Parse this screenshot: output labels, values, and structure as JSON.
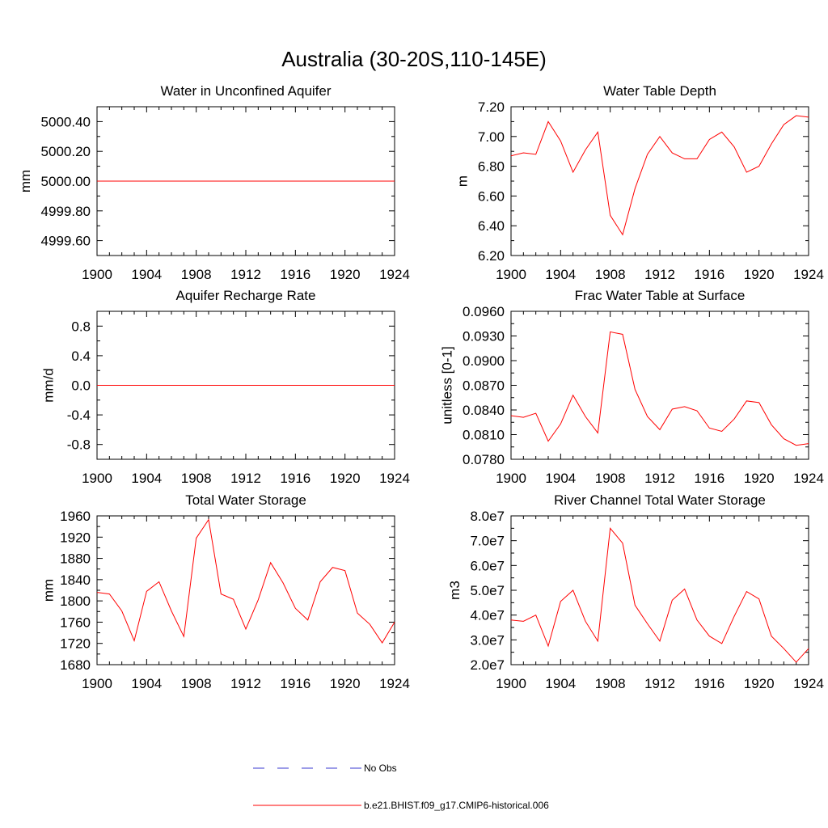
{
  "page_title": "Australia (30-20S,110-145E)",
  "legend": {
    "obs_label": "No Obs",
    "obs_color": "#3a3ad0",
    "model_label": "b.e21.BHIST.f09_g17.CMIP6-historical.006",
    "model_color": "#ff0000"
  },
  "chart_data": [
    {
      "type": "line",
      "title": "Water in Unconfined Aquifer",
      "ylabel": "mm",
      "xlim": [
        1900,
        1924
      ],
      "ylim": [
        4999.5,
        5000.5
      ],
      "xticks": [
        1900,
        1904,
        1908,
        1912,
        1916,
        1920,
        1924
      ],
      "yticks": [
        4999.6,
        4999.8,
        5000.0,
        5000.2,
        5000.4
      ],
      "ytick_labels": [
        "4999.60",
        "4999.80",
        "5000.00",
        "5000.20",
        "5000.40"
      ],
      "x": [
        1900,
        1901,
        1902,
        1903,
        1904,
        1905,
        1906,
        1907,
        1908,
        1909,
        1910,
        1911,
        1912,
        1913,
        1914,
        1915,
        1916,
        1917,
        1918,
        1919,
        1920,
        1921,
        1922,
        1923,
        1924
      ],
      "series": [
        {
          "values": [
            5000,
            5000,
            5000,
            5000,
            5000,
            5000,
            5000,
            5000,
            5000,
            5000,
            5000,
            5000,
            5000,
            5000,
            5000,
            5000,
            5000,
            5000,
            5000,
            5000,
            5000,
            5000,
            5000,
            5000,
            5000
          ]
        }
      ]
    },
    {
      "type": "line",
      "title": "Water Table Depth",
      "ylabel": "m",
      "xlim": [
        1900,
        1924
      ],
      "ylim": [
        6.2,
        7.2
      ],
      "xticks": [
        1900,
        1904,
        1908,
        1912,
        1916,
        1920,
        1924
      ],
      "yticks": [
        6.2,
        6.4,
        6.6,
        6.8,
        7.0,
        7.2
      ],
      "ytick_labels": [
        "6.20",
        "6.40",
        "6.60",
        "6.80",
        "7.00",
        "7.20"
      ],
      "x": [
        1900,
        1901,
        1902,
        1903,
        1904,
        1905,
        1906,
        1907,
        1908,
        1909,
        1910,
        1911,
        1912,
        1913,
        1914,
        1915,
        1916,
        1917,
        1918,
        1919,
        1920,
        1921,
        1922,
        1923,
        1924
      ],
      "series": [
        {
          "values": [
            6.87,
            6.89,
            6.88,
            7.1,
            6.97,
            6.76,
            6.91,
            7.03,
            6.47,
            6.34,
            6.65,
            6.88,
            7.0,
            6.89,
            6.85,
            6.85,
            6.98,
            7.03,
            6.93,
            6.76,
            6.8,
            6.95,
            7.08,
            7.14,
            7.13
          ]
        }
      ]
    },
    {
      "type": "line",
      "title": "Aquifer Recharge Rate",
      "ylabel": "mm/d",
      "xlim": [
        1900,
        1924
      ],
      "ylim": [
        -1.0,
        1.0
      ],
      "xticks": [
        1900,
        1904,
        1908,
        1912,
        1916,
        1920,
        1924
      ],
      "yticks": [
        -0.8,
        -0.4,
        0.0,
        0.4,
        0.8
      ],
      "ytick_labels": [
        "-0.8",
        "-0.4",
        "0.0",
        "0.4",
        "0.8"
      ],
      "x": [
        1900,
        1901,
        1902,
        1903,
        1904,
        1905,
        1906,
        1907,
        1908,
        1909,
        1910,
        1911,
        1912,
        1913,
        1914,
        1915,
        1916,
        1917,
        1918,
        1919,
        1920,
        1921,
        1922,
        1923,
        1924
      ],
      "series": [
        {
          "values": [
            0,
            0,
            0,
            0,
            0,
            0,
            0,
            0,
            0,
            0,
            0,
            0,
            0,
            0,
            0,
            0,
            0,
            0,
            0,
            0,
            0,
            0,
            0,
            0,
            0
          ]
        }
      ]
    },
    {
      "type": "line",
      "title": "Frac Water Table at Surface",
      "ylabel": "unitless [0-1]",
      "xlim": [
        1900,
        1924
      ],
      "ylim": [
        0.078,
        0.096
      ],
      "xticks": [
        1900,
        1904,
        1908,
        1912,
        1916,
        1920,
        1924
      ],
      "yticks": [
        0.078,
        0.081,
        0.084,
        0.087,
        0.09,
        0.093,
        0.096
      ],
      "ytick_labels": [
        "0.0780",
        "0.0810",
        "0.0840",
        "0.0870",
        "0.0900",
        "0.0930",
        "0.0960"
      ],
      "x": [
        1900,
        1901,
        1902,
        1903,
        1904,
        1905,
        1906,
        1907,
        1908,
        1909,
        1910,
        1911,
        1912,
        1913,
        1914,
        1915,
        1916,
        1917,
        1918,
        1919,
        1920,
        1921,
        1922,
        1923,
        1924
      ],
      "series": [
        {
          "values": [
            0.0833,
            0.0831,
            0.0836,
            0.0802,
            0.0823,
            0.0858,
            0.0832,
            0.0812,
            0.0935,
            0.0932,
            0.0865,
            0.0832,
            0.0816,
            0.0841,
            0.0844,
            0.0839,
            0.0818,
            0.0814,
            0.0829,
            0.0851,
            0.0849,
            0.0822,
            0.0805,
            0.0797,
            0.0799
          ]
        }
      ]
    },
    {
      "type": "line",
      "title": "Total Water Storage",
      "ylabel": "mm",
      "xlim": [
        1900,
        1924
      ],
      "ylim": [
        1680,
        1960
      ],
      "xticks": [
        1900,
        1904,
        1908,
        1912,
        1916,
        1920,
        1924
      ],
      "yticks": [
        1680,
        1720,
        1760,
        1800,
        1840,
        1880,
        1920,
        1960
      ],
      "ytick_labels": [
        "1680",
        "1720",
        "1760",
        "1800",
        "1840",
        "1880",
        "1920",
        "1960"
      ],
      "x": [
        1900,
        1901,
        1902,
        1903,
        1904,
        1905,
        1906,
        1907,
        1908,
        1909,
        1910,
        1911,
        1912,
        1913,
        1914,
        1915,
        1916,
        1917,
        1918,
        1919,
        1920,
        1921,
        1922,
        1923,
        1924
      ],
      "series": [
        {
          "values": [
            1816,
            1813,
            1781,
            1725,
            1818,
            1836,
            1781,
            1733,
            1918,
            1953,
            1813,
            1803,
            1747,
            1802,
            1872,
            1834,
            1786,
            1764,
            1836,
            1863,
            1857,
            1777,
            1756,
            1721,
            1760
          ]
        }
      ]
    },
    {
      "type": "line",
      "title": "River Channel Total Water Storage",
      "ylabel": "m3",
      "xlim": [
        1900,
        1924
      ],
      "ylim": [
        20000000,
        80000000
      ],
      "xticks": [
        1900,
        1904,
        1908,
        1912,
        1916,
        1920,
        1924
      ],
      "yticks": [
        20000000,
        30000000,
        40000000,
        50000000,
        60000000,
        70000000,
        80000000
      ],
      "ytick_labels": [
        "2.0e7",
        "3.0e7",
        "4.0e7",
        "5.0e7",
        "6.0e7",
        "7.0e7",
        "8.0e7"
      ],
      "x": [
        1900,
        1901,
        1902,
        1903,
        1904,
        1905,
        1906,
        1907,
        1908,
        1909,
        1910,
        1911,
        1912,
        1913,
        1914,
        1915,
        1916,
        1917,
        1918,
        1919,
        1920,
        1921,
        1922,
        1923,
        1924
      ],
      "series": [
        {
          "values": [
            38000000,
            37500000,
            40000000,
            27500000,
            45500000,
            50000000,
            37500000,
            29500000,
            75000000,
            69000000,
            44000000,
            36500000,
            29500000,
            46000000,
            50500000,
            38000000,
            31500000,
            28500000,
            39500000,
            49500000,
            46500000,
            31500000,
            26500000,
            21000000,
            26500000
          ]
        }
      ]
    }
  ]
}
